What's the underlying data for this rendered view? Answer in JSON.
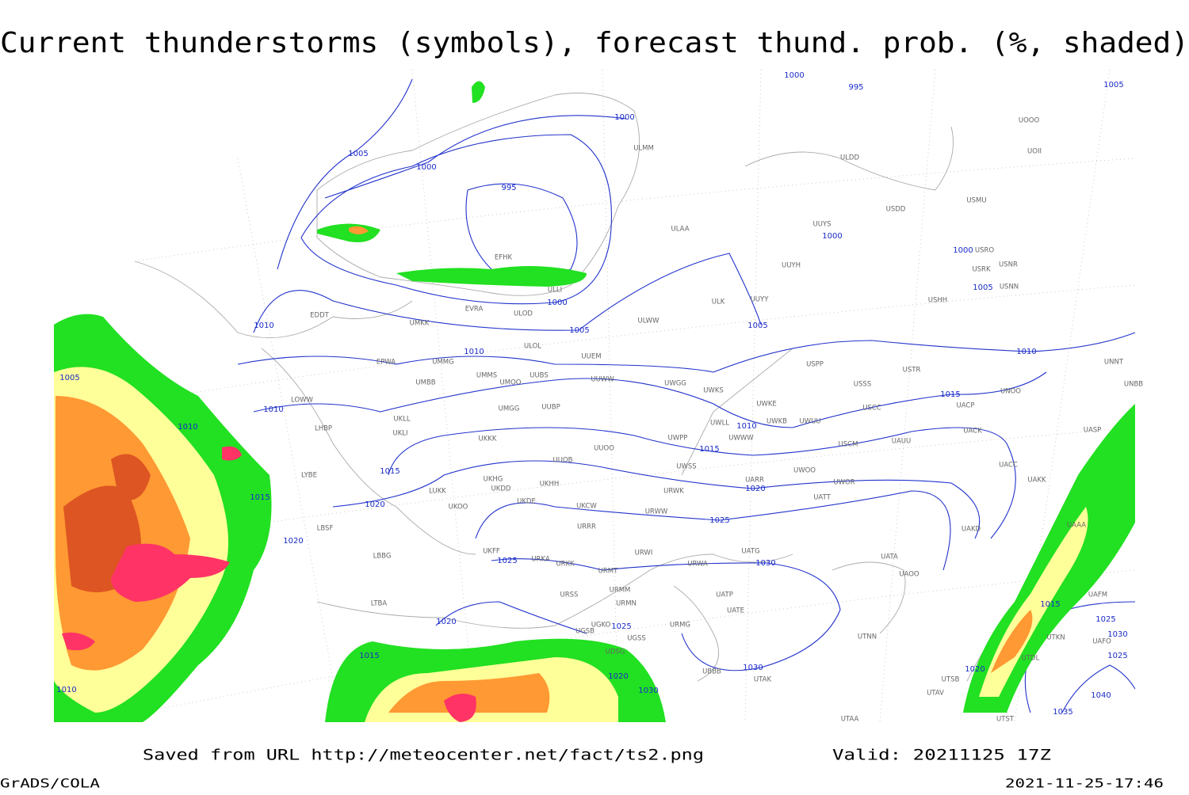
{
  "title": "Current thunderstorms (symbols), forecast thund. prob. (%, shaded)",
  "footer": {
    "source": "Saved from URL http://meteocenter.net/fact/ts2.png",
    "valid": "Valid: 20211125 17Z",
    "software": "GrADS/COLA",
    "timestamp": "2021-11-25-17:46"
  },
  "isobar_labels": [
    "1000",
    "995",
    "1005",
    "1000",
    "1005",
    "1000",
    "995",
    "1000",
    "1000",
    "1005",
    "1000",
    "1010",
    "1005",
    "1005",
    "1010",
    "1010",
    "1005",
    "1010",
    "1015",
    "1010",
    "1010",
    "1015",
    "1015",
    "1015",
    "1020",
    "1020",
    "1025",
    "1020",
    "1025",
    "1030",
    "1015",
    "1025",
    "1020",
    "1025",
    "1030",
    "1025",
    "1015",
    "1030",
    "1020",
    "1030",
    "1020",
    "1010",
    "1040",
    "1035"
  ],
  "stations": [
    "ULMM",
    "ULAA",
    "ULDD",
    "USDD",
    "USMU",
    "UOOO",
    "UOII",
    "UUYS",
    "UUYH",
    "USRO",
    "USRK",
    "USNR",
    "USNN",
    "USHH",
    "UUYY",
    "ULK",
    "ULWW",
    "ULOD",
    "EVRA",
    "EFHK",
    "ULLI",
    "EDDT",
    "UMKK",
    "ULOL",
    "UUEM",
    "EPWA",
    "UMMG",
    "UMMS",
    "UMOO",
    "UUBS",
    "UUWW",
    "UWGG",
    "UWKS",
    "USPP",
    "USTR",
    "USSS",
    "UNOO",
    "UNNT",
    "UNBB",
    "LOWW",
    "UMBB",
    "UKLL",
    "UKLI",
    "UMGG",
    "UUBP",
    "UWKE",
    "UWKB",
    "UWUU",
    "USCC",
    "UACP",
    "UWLL",
    "UWWW",
    "LHBP",
    "UKKK",
    "UUOO",
    "USCM",
    "UAUU",
    "UACK",
    "UASP",
    "UWPP",
    "LYBE",
    "UUOB",
    "UWSS",
    "UARR",
    "UWOO",
    "UWOR",
    "UACC",
    "UAKK",
    "UKHG",
    "UKHH",
    "UKDD",
    "UKDE",
    "LUKK",
    "URWK",
    "UKOO",
    "UKCW",
    "URWW",
    "UATT",
    "UAAA",
    "UAKD",
    "URRR",
    "LBSF",
    "UKFF",
    "URKA",
    "URKK",
    "URWI",
    "UATG",
    "UATA",
    "UAOO",
    "URMT",
    "URWA",
    "LBBG",
    "URSS",
    "URMM",
    "URMN",
    "UATP",
    "UATE",
    "UAFM",
    "UGKO",
    "UGSB",
    "UGSS",
    "URMG",
    "UTNN",
    "UTKN",
    "UAFO",
    "LTBA",
    "UDSG",
    "UBBB",
    "UTAK",
    "UTSB",
    "UTDL",
    "UTAV",
    "UTST",
    "UTAA"
  ]
}
